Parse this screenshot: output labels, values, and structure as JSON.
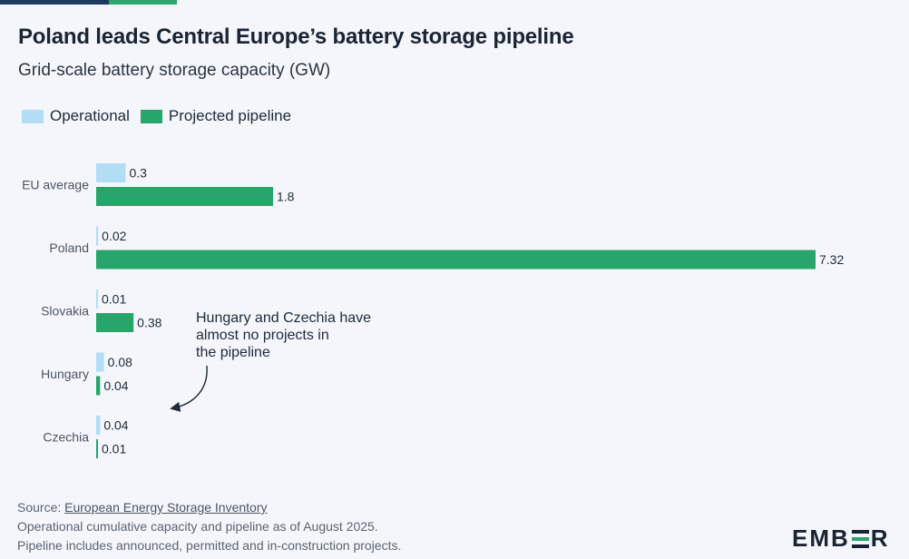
{
  "title": "Poland leads Central Europe’s battery storage pipeline",
  "subtitle": "Grid-scale battery storage capacity (GW)",
  "colors": {
    "operational": "#b3dcf5",
    "pipeline": "#27a56b",
    "accent_dark": "#1e3a5f"
  },
  "chart_data": {
    "type": "bar",
    "orientation": "horizontal",
    "categories": [
      "EU average",
      "Poland",
      "Slovakia",
      "Hungary",
      "Czechia"
    ],
    "series": [
      {
        "name": "Operational",
        "values": [
          0.3,
          0.02,
          0.01,
          0.08,
          0.04
        ],
        "labels": [
          "0.3",
          "0.02",
          "0.01",
          "0.08",
          "0.04"
        ]
      },
      {
        "name": "Projected pipeline",
        "values": [
          1.8,
          7.32,
          0.38,
          0.04,
          0.01
        ],
        "labels": [
          "1.8",
          "7.32",
          "0.38",
          "0.04",
          "0.01"
        ]
      }
    ],
    "xlim": [
      0,
      7.32
    ],
    "grid": false,
    "legend": "top-left",
    "annotation": "Hungary and Czechia have almost no projects in the pipeline"
  },
  "footer": {
    "source_prefix": "Source: ",
    "source_link": "European Energy Storage Inventory",
    "note1": "Operational cumulative capacity and pipeline as of August 2025.",
    "note2": "Pipeline includes announced, permitted and in-construction projects."
  },
  "logo": {
    "left": "EMB",
    "right": "R"
  }
}
